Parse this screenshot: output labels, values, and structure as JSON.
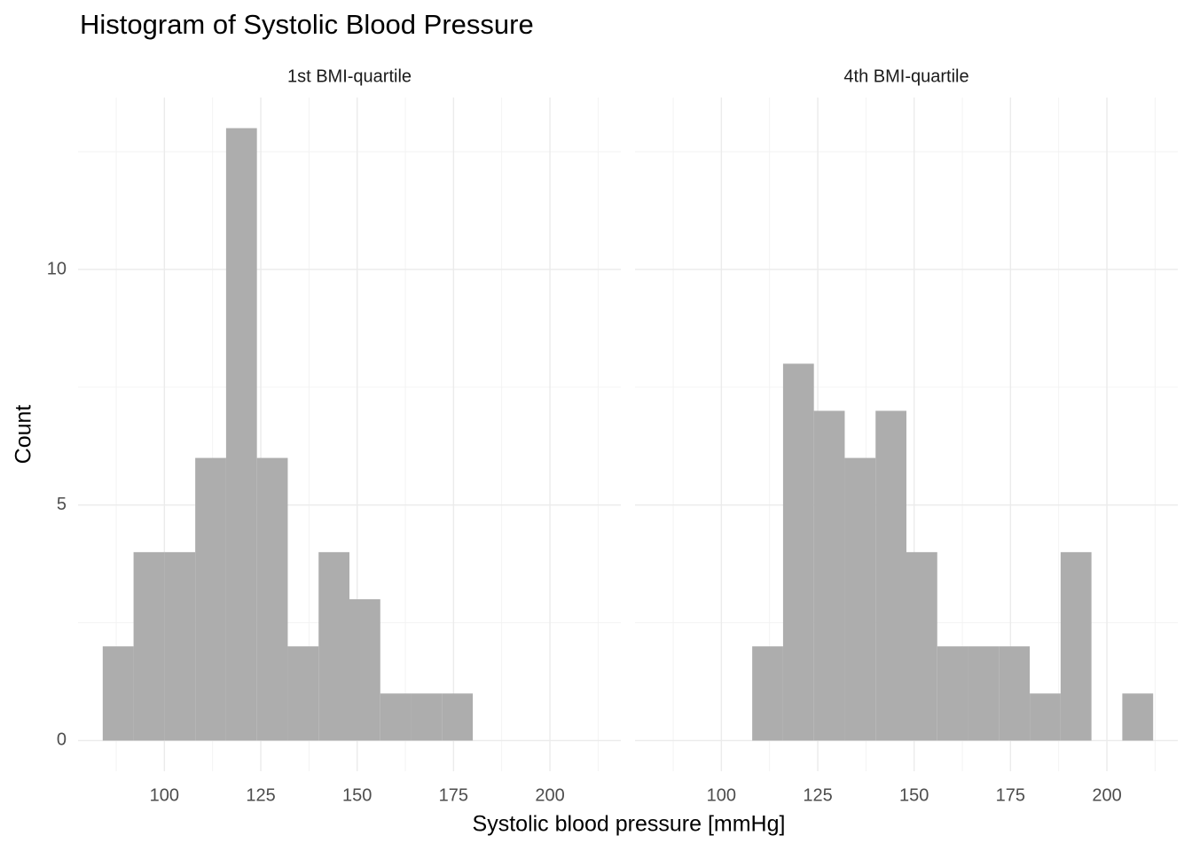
{
  "chart_data": {
    "type": "histogram",
    "title": "Histogram of Systolic Blood Pressure",
    "x_label": "Systolic blood pressure [mmHg]",
    "y_label": "Count",
    "color": "#adadad",
    "xlim": [
      77.6,
      218.4
    ],
    "xticks": [
      100,
      125,
      150,
      175,
      200
    ],
    "xminorticks": [
      87.5,
      112.5,
      137.5,
      162.5,
      187.5,
      212.5
    ],
    "ylim": [
      -0.65,
      13.65
    ],
    "yticks": [
      0,
      5,
      10
    ],
    "yminorticks": [
      2.5,
      7.5,
      12.5
    ],
    "grid": true,
    "facets": [
      {
        "title": "1st BMI-quartile",
        "bins": [
          84,
          92,
          100,
          108,
          116,
          124,
          132,
          140,
          148,
          156,
          164,
          172,
          180
        ],
        "counts": [
          2,
          4,
          4,
          6,
          13,
          6,
          2,
          4,
          3,
          1,
          1,
          1
        ]
      },
      {
        "title": "4th BMI-quartile",
        "bins": [
          108,
          116,
          124,
          132,
          140,
          148,
          156,
          164,
          172,
          180,
          188,
          196,
          204,
          212
        ],
        "counts": [
          2,
          8,
          7,
          6,
          7,
          4,
          2,
          2,
          2,
          1,
          4,
          0,
          1
        ]
      }
    ]
  }
}
